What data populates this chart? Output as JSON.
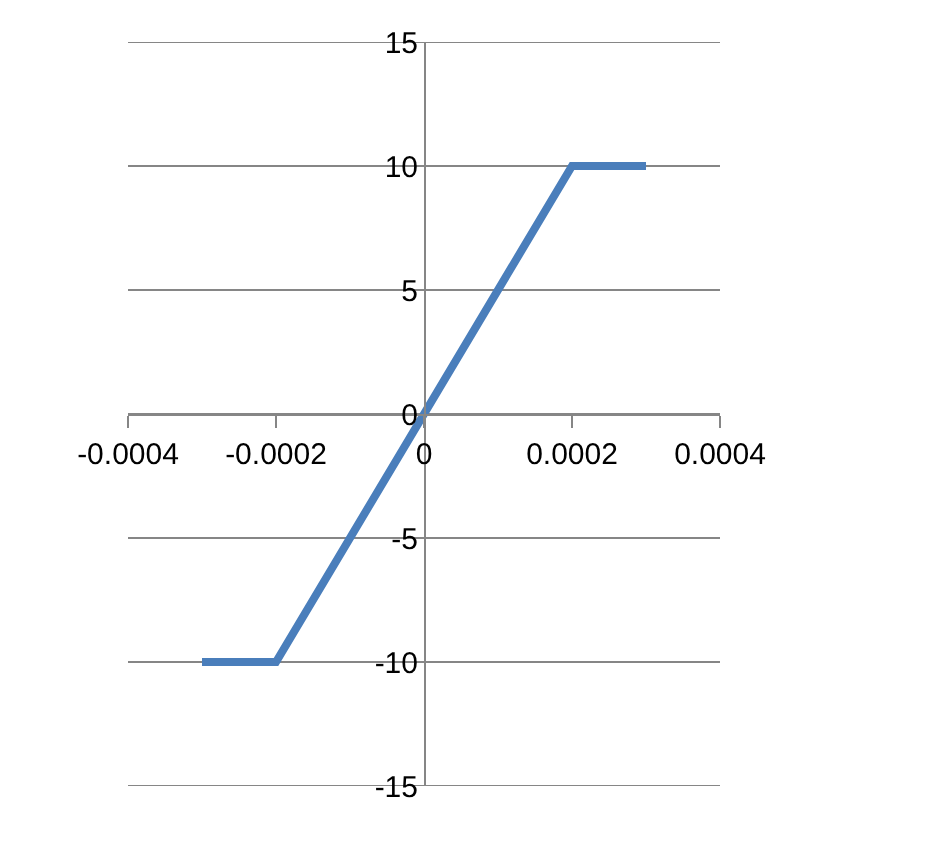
{
  "chart_data": {
    "type": "line",
    "x": [
      -0.0003,
      -0.0002,
      0.0002,
      0.0003
    ],
    "series": [
      {
        "color": "#4a7ebb",
        "values": [
          -10,
          -10,
          10,
          10
        ]
      }
    ],
    "xlim": [
      -0.0004,
      0.0004
    ],
    "xticks": [
      -0.0004,
      -0.0002,
      0,
      0.0002,
      0.0004
    ],
    "ylim": [
      -15,
      15
    ],
    "yticks": [
      -15,
      -10,
      -5,
      0,
      5,
      10,
      15
    ],
    "grid": "y",
    "marker": "none",
    "line_style": "solid"
  }
}
